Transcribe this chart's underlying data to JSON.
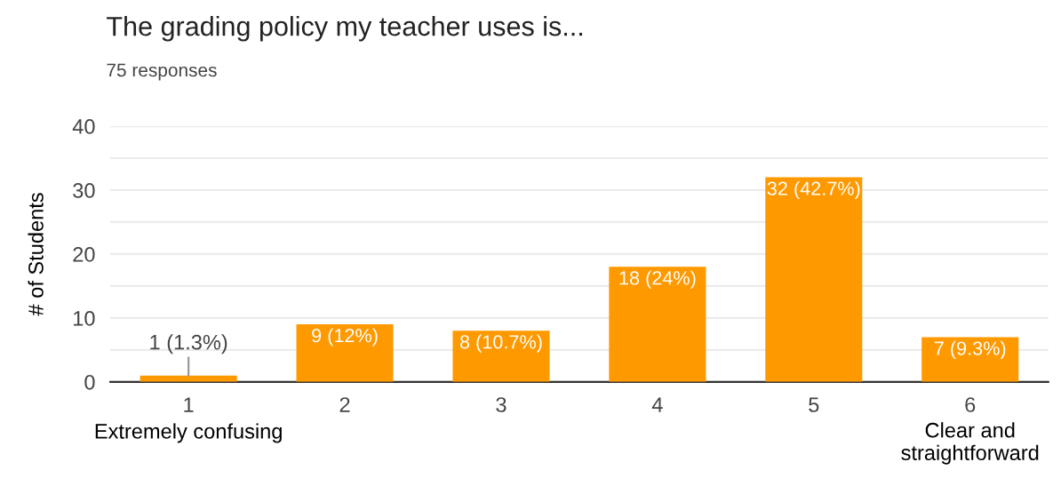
{
  "chart_data": {
    "type": "bar",
    "title": "The grading policy my teacher uses is...",
    "subtitle": "75 responses",
    "ylabel": "# of Students",
    "categories": [
      "1",
      "2",
      "3",
      "4",
      "5",
      "6"
    ],
    "values": [
      1,
      9,
      8,
      18,
      32,
      7
    ],
    "value_labels": [
      "1 (1.3%)",
      "9 (12%)",
      "8 (10.7%)",
      "18 (24%)",
      "32 (42.7%)",
      "7 (9.3%)"
    ],
    "color": "#ff9900",
    "ylim": [
      0,
      40
    ],
    "yticks": [
      0,
      {
        "value": 5,
        "label": null
      },
      10,
      {
        "value": 15,
        "label": null
      },
      20,
      {
        "value": 25,
        "label": null
      },
      30,
      {
        "value": 35,
        "label": null
      },
      40
    ],
    "grid": "y",
    "annotations": [
      "Extremely confusing",
      "Clear and straightforward"
    ]
  }
}
